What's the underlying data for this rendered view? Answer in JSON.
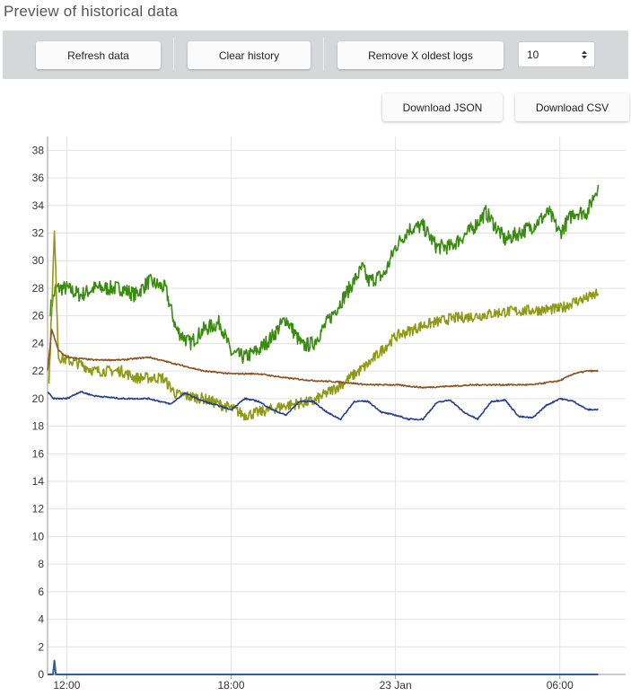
{
  "title": "Preview of historical data",
  "toolbar": {
    "refresh_label": "Refresh data",
    "clear_label": "Clear history",
    "remove_label": "Remove X oldest logs",
    "remove_count": "10"
  },
  "downloads": {
    "json_label": "Download JSON",
    "csv_label": "Download CSV"
  },
  "chart_data": {
    "type": "line",
    "ylim": [
      0,
      39
    ],
    "yticks": [
      0,
      2,
      4,
      6,
      8,
      10,
      12,
      14,
      16,
      18,
      20,
      22,
      24,
      26,
      28,
      30,
      32,
      34,
      36,
      38
    ],
    "xlim_hours": [
      11.3,
      8.4
    ],
    "x_ticks": [
      {
        "hour": 12,
        "label": "12:00"
      },
      {
        "hour": 18,
        "label": "18:00"
      },
      {
        "hour": 24,
        "label": "23 Jan"
      },
      {
        "hour": 30,
        "label": "06:00"
      }
    ],
    "grid": true,
    "series": [
      {
        "color": "#3a8c10",
        "noise": 0.55,
        "points": [
          [
            11.4,
            26.5
          ],
          [
            11.6,
            28.0
          ],
          [
            12.0,
            28.0
          ],
          [
            12.5,
            27.5
          ],
          [
            13.0,
            28.0
          ],
          [
            14.0,
            28.0
          ],
          [
            14.5,
            27.5
          ],
          [
            15.0,
            28.5
          ],
          [
            15.6,
            28.0
          ],
          [
            16.0,
            25.0
          ],
          [
            16.5,
            24.0
          ],
          [
            17.0,
            25.0
          ],
          [
            17.6,
            25.5
          ],
          [
            18.0,
            23.3
          ],
          [
            18.5,
            23.0
          ],
          [
            19.0,
            23.5
          ],
          [
            19.5,
            24.5
          ],
          [
            20.0,
            25.8
          ],
          [
            20.6,
            23.8
          ],
          [
            21.0,
            24.0
          ],
          [
            22.0,
            27.0
          ],
          [
            22.8,
            29.5
          ],
          [
            23.0,
            28.5
          ],
          [
            23.6,
            29.0
          ],
          [
            24.0,
            31.0
          ],
          [
            24.5,
            32.3
          ],
          [
            25.0,
            32.5
          ],
          [
            25.5,
            31.0
          ],
          [
            26.0,
            31.0
          ],
          [
            26.8,
            32.3
          ],
          [
            27.3,
            33.5
          ],
          [
            28.0,
            31.5
          ],
          [
            28.5,
            32.0
          ],
          [
            29.0,
            32.5
          ],
          [
            29.6,
            33.5
          ],
          [
            30.0,
            32.0
          ],
          [
            30.5,
            33.5
          ],
          [
            31.0,
            33.5
          ],
          [
            31.4,
            35.5
          ]
        ]
      },
      {
        "color": "#8e9a14",
        "noise": 0.4,
        "points": [
          [
            11.35,
            21.0
          ],
          [
            11.55,
            32.0
          ],
          [
            11.7,
            23.0
          ],
          [
            12.0,
            22.8
          ],
          [
            12.5,
            22.5
          ],
          [
            13.0,
            22.0
          ],
          [
            14.0,
            22.0
          ],
          [
            14.5,
            21.5
          ],
          [
            15.5,
            21.5
          ],
          [
            16.0,
            20.3
          ],
          [
            17.0,
            20.0
          ],
          [
            18.0,
            19.3
          ],
          [
            18.5,
            18.8
          ],
          [
            19.0,
            19.0
          ],
          [
            20.0,
            19.5
          ],
          [
            21.0,
            19.8
          ],
          [
            22.0,
            21.0
          ],
          [
            23.0,
            22.5
          ],
          [
            24.0,
            24.5
          ],
          [
            25.0,
            25.3
          ],
          [
            26.0,
            25.8
          ],
          [
            27.0,
            26.0
          ],
          [
            28.0,
            26.3
          ],
          [
            29.0,
            26.4
          ],
          [
            30.0,
            26.5
          ],
          [
            30.5,
            27.0
          ],
          [
            31.0,
            27.3
          ],
          [
            31.4,
            27.6
          ]
        ]
      },
      {
        "color": "#8a5322",
        "noise": 0.05,
        "points": [
          [
            11.3,
            22.0
          ],
          [
            11.45,
            25.0
          ],
          [
            11.7,
            23.5
          ],
          [
            12.0,
            23.0
          ],
          [
            13.0,
            22.8
          ],
          [
            14.0,
            22.8
          ],
          [
            15.0,
            23.0
          ],
          [
            16.0,
            22.5
          ],
          [
            17.0,
            22.0
          ],
          [
            18.0,
            21.8
          ],
          [
            19.0,
            21.8
          ],
          [
            20.0,
            21.5
          ],
          [
            21.0,
            21.3
          ],
          [
            22.0,
            21.2
          ],
          [
            23.0,
            21.0
          ],
          [
            24.0,
            21.0
          ],
          [
            25.0,
            20.8
          ],
          [
            26.0,
            20.9
          ],
          [
            27.0,
            21.0
          ],
          [
            28.0,
            21.0
          ],
          [
            29.0,
            21.0
          ],
          [
            30.0,
            21.3
          ],
          [
            30.5,
            21.8
          ],
          [
            31.0,
            22.0
          ],
          [
            31.4,
            22.0
          ]
        ]
      },
      {
        "color": "#253f8c",
        "noise": 0.05,
        "points": [
          [
            11.3,
            20.5
          ],
          [
            11.5,
            20.0
          ],
          [
            12.0,
            20.0
          ],
          [
            12.5,
            20.5
          ],
          [
            13.0,
            20.2
          ],
          [
            14.0,
            20.0
          ],
          [
            15.0,
            20.0
          ],
          [
            15.8,
            19.6
          ],
          [
            16.3,
            20.4
          ],
          [
            17.0,
            19.8
          ],
          [
            18.0,
            19.2
          ],
          [
            18.5,
            20.0
          ],
          [
            19.0,
            19.8
          ],
          [
            19.5,
            19.2
          ],
          [
            20.0,
            18.8
          ],
          [
            20.5,
            19.8
          ],
          [
            21.0,
            19.8
          ],
          [
            21.5,
            19.0
          ],
          [
            22.0,
            18.5
          ],
          [
            22.5,
            19.8
          ],
          [
            23.0,
            19.8
          ],
          [
            23.5,
            19.0
          ],
          [
            24.0,
            18.8
          ],
          [
            24.5,
            18.5
          ],
          [
            25.0,
            18.5
          ],
          [
            25.5,
            19.7
          ],
          [
            26.0,
            19.9
          ],
          [
            26.5,
            19.0
          ],
          [
            27.0,
            18.5
          ],
          [
            27.5,
            19.8
          ],
          [
            28.0,
            19.9
          ],
          [
            28.5,
            18.7
          ],
          [
            29.0,
            18.6
          ],
          [
            29.5,
            19.5
          ],
          [
            30.0,
            20.0
          ],
          [
            30.5,
            19.8
          ],
          [
            31.0,
            19.2
          ],
          [
            31.4,
            19.2
          ]
        ]
      },
      {
        "color": "#2f5f9e",
        "noise": 0,
        "points": [
          [
            11.3,
            0.0
          ],
          [
            11.5,
            0.0
          ],
          [
            11.55,
            1.0
          ],
          [
            11.6,
            0.0
          ],
          [
            31.4,
            0.0
          ]
        ]
      }
    ]
  }
}
